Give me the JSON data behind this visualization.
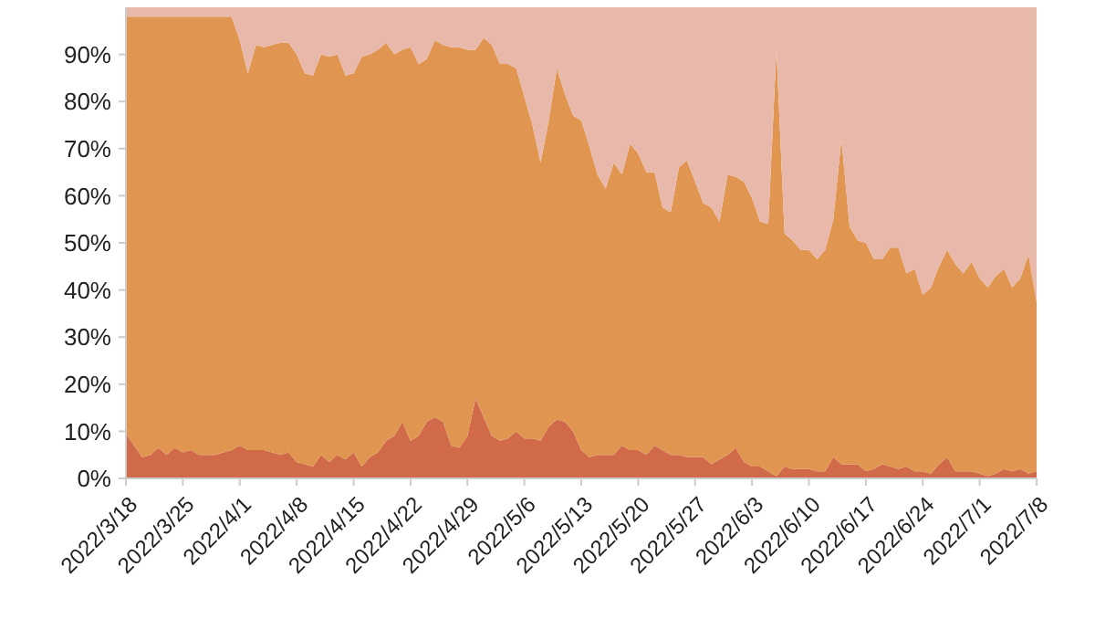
{
  "chart_data": {
    "type": "area",
    "stacked": true,
    "x": [
      "2022-03-18",
      "2022-03-19",
      "2022-03-20",
      "2022-03-21",
      "2022-03-22",
      "2022-03-23",
      "2022-03-24",
      "2022-03-25",
      "2022-03-26",
      "2022-03-27",
      "2022-03-28",
      "2022-03-29",
      "2022-03-30",
      "2022-03-31",
      "2022-04-01",
      "2022-04-02",
      "2022-04-03",
      "2022-04-04",
      "2022-04-05",
      "2022-04-06",
      "2022-04-07",
      "2022-04-08",
      "2022-04-09",
      "2022-04-10",
      "2022-04-11",
      "2022-04-12",
      "2022-04-13",
      "2022-04-14",
      "2022-04-15",
      "2022-04-16",
      "2022-04-17",
      "2022-04-18",
      "2022-04-19",
      "2022-04-20",
      "2022-04-21",
      "2022-04-22",
      "2022-04-23",
      "2022-04-24",
      "2022-04-25",
      "2022-04-26",
      "2022-04-27",
      "2022-04-28",
      "2022-04-29",
      "2022-04-30",
      "2022-05-01",
      "2022-05-02",
      "2022-05-03",
      "2022-05-04",
      "2022-05-05",
      "2022-05-06",
      "2022-05-07",
      "2022-05-08",
      "2022-05-09",
      "2022-05-10",
      "2022-05-11",
      "2022-05-12",
      "2022-05-13",
      "2022-05-14",
      "2022-05-15",
      "2022-05-16",
      "2022-05-17",
      "2022-05-18",
      "2022-05-19",
      "2022-05-20",
      "2022-05-21",
      "2022-05-22",
      "2022-05-23",
      "2022-05-24",
      "2022-05-25",
      "2022-05-26",
      "2022-05-27",
      "2022-05-28",
      "2022-05-29",
      "2022-05-30",
      "2022-05-31",
      "2022-06-01",
      "2022-06-02",
      "2022-06-03",
      "2022-06-04",
      "2022-06-05",
      "2022-06-06",
      "2022-06-07",
      "2022-06-08",
      "2022-06-09",
      "2022-06-10",
      "2022-06-11",
      "2022-06-12",
      "2022-06-13",
      "2022-06-14",
      "2022-06-15",
      "2022-06-16",
      "2022-06-17",
      "2022-06-18",
      "2022-06-19",
      "2022-06-20",
      "2022-06-21",
      "2022-06-22",
      "2022-06-23",
      "2022-06-24",
      "2022-06-25",
      "2022-06-26",
      "2022-06-27",
      "2022-06-28",
      "2022-06-29",
      "2022-06-30",
      "2022-07-01",
      "2022-07-02",
      "2022-07-03",
      "2022-07-04",
      "2022-07-05",
      "2022-07-06",
      "2022-07-07",
      "2022-07-08"
    ],
    "series": [
      {
        "color": "#d06a48",
        "values": [
          9.5,
          7,
          4.5,
          5,
          6.5,
          5,
          6.5,
          5.5,
          6,
          5,
          5,
          5,
          5.5,
          6,
          7,
          6,
          6,
          6,
          5.5,
          5,
          5.5,
          3.5,
          3,
          2.5,
          5,
          3.5,
          5,
          4,
          5.5,
          2.5,
          4.5,
          5.5,
          8,
          9,
          12,
          8,
          9,
          12,
          13,
          12,
          7,
          6.5,
          9,
          17,
          13,
          9,
          8,
          8.5,
          10,
          8.5,
          8.5,
          8,
          11,
          12.5,
          12,
          10,
          6,
          4.5,
          5,
          5,
          5,
          7,
          6,
          6,
          5,
          7,
          6,
          5,
          5,
          4.5,
          4.5,
          4.5,
          3,
          4,
          5,
          6.5,
          3.5,
          2.5,
          2.5,
          1.5,
          0.5,
          2.5,
          2,
          2,
          2,
          1.5,
          1.5,
          4.5,
          3,
          3,
          3,
          1.5,
          2,
          3,
          2.5,
          2,
          2.5,
          1.5,
          1.5,
          1,
          3,
          4.5,
          1.5,
          1.5,
          1.5,
          1,
          0.5,
          1,
          2,
          1.5,
          2,
          1,
          1.5
        ]
      },
      {
        "color": "#e09650",
        "values": [
          88.5,
          91,
          93.5,
          93,
          91.5,
          93,
          91.5,
          92.5,
          92,
          93,
          93,
          93,
          92.5,
          92,
          86,
          80,
          86,
          85.5,
          86.5,
          87.5,
          87,
          86.5,
          83,
          83,
          85,
          86,
          85,
          81.5,
          80.5,
          87,
          85.5,
          85.5,
          84.5,
          81,
          79,
          83.5,
          79,
          77,
          80,
          80,
          84.5,
          85,
          82,
          74,
          80.5,
          83,
          80,
          79.5,
          77,
          72.5,
          66.5,
          59,
          65,
          74.5,
          69.5,
          67,
          70,
          66,
          59.5,
          56.5,
          62,
          57.5,
          65,
          63,
          60,
          58,
          51.5,
          51.5,
          61,
          63,
          58.5,
          54,
          54.5,
          50.5,
          59.5,
          57.5,
          59.5,
          57,
          52,
          52.5,
          90.5,
          49.5,
          48.5,
          46.5,
          46.5,
          45,
          47,
          50.5,
          69,
          50.5,
          47.5,
          48.5,
          44.5,
          43.5,
          46.5,
          47,
          41,
          43,
          37.5,
          39.5,
          42,
          44,
          44,
          42,
          44.5,
          41.5,
          40,
          42,
          42.5,
          39,
          40.5,
          46.5,
          36
        ]
      },
      {
        "color": "#e8b8aa",
        "values": [
          2,
          2,
          2,
          2,
          2,
          2,
          2,
          2,
          2,
          2,
          2,
          2,
          2,
          2,
          7,
          14,
          8,
          8.5,
          8,
          7.5,
          7.5,
          10,
          14,
          14.5,
          10,
          10.5,
          10,
          14.5,
          14,
          10.5,
          10,
          9,
          7.5,
          10,
          9,
          8.5,
          12,
          11,
          7,
          8,
          8.5,
          8.5,
          9,
          9,
          6.5,
          8,
          12,
          12,
          13,
          19,
          25,
          33,
          24,
          13,
          18.5,
          23,
          24,
          29.5,
          35.5,
          38.5,
          33,
          35.5,
          29,
          31,
          35,
          35,
          42.5,
          43.5,
          34,
          32.5,
          37,
          41.5,
          42.5,
          45.5,
          35.5,
          36,
          37,
          40.5,
          45.5,
          46,
          9,
          48,
          49.5,
          51.5,
          51.5,
          53.5,
          51.5,
          45,
          28,
          46.5,
          49.5,
          50,
          53.5,
          53.5,
          51,
          51,
          56.5,
          55.5,
          61,
          59.5,
          55,
          51.5,
          54.5,
          56.5,
          54,
          57.5,
          59.5,
          57,
          55.5,
          59.5,
          57.5,
          52.5,
          62.5
        ]
      }
    ],
    "xlim": [
      "2022-03-18",
      "2022-07-08"
    ],
    "xticks": [
      {
        "value": "2022-03-18",
        "label": "2022/3/18"
      },
      {
        "value": "2022-03-25",
        "label": "2022/3/25"
      },
      {
        "value": "2022-04-01",
        "label": "2022/4/1"
      },
      {
        "value": "2022-04-08",
        "label": "2022/4/8"
      },
      {
        "value": "2022-04-15",
        "label": "2022/4/15"
      },
      {
        "value": "2022-04-22",
        "label": "2022/4/22"
      },
      {
        "value": "2022-04-29",
        "label": "2022/4/29"
      },
      {
        "value": "2022-05-06",
        "label": "2022/5/6"
      },
      {
        "value": "2022-05-13",
        "label": "2022/5/13"
      },
      {
        "value": "2022-05-20",
        "label": "2022/5/20"
      },
      {
        "value": "2022-05-27",
        "label": "2022/5/27"
      },
      {
        "value": "2022-06-03",
        "label": "2022/6/3"
      },
      {
        "value": "2022-06-10",
        "label": "2022/6/10"
      },
      {
        "value": "2022-06-17",
        "label": "2022/6/17"
      },
      {
        "value": "2022-06-24",
        "label": "2022/6/24"
      },
      {
        "value": "2022-07-01",
        "label": "2022/7/1"
      },
      {
        "value": "2022-07-08",
        "label": "2022/7/8"
      }
    ],
    "ylim": [
      0,
      100
    ],
    "yticks": [
      {
        "value": 0,
        "label": "0%"
      },
      {
        "value": 10,
        "label": "10%"
      },
      {
        "value": 20,
        "label": "20%"
      },
      {
        "value": 30,
        "label": "30%"
      },
      {
        "value": 40,
        "label": "40%"
      },
      {
        "value": 50,
        "label": "50%"
      },
      {
        "value": 60,
        "label": "60%"
      },
      {
        "value": 70,
        "label": "70%"
      },
      {
        "value": 80,
        "label": "80%"
      },
      {
        "value": 90,
        "label": "90%"
      }
    ]
  }
}
